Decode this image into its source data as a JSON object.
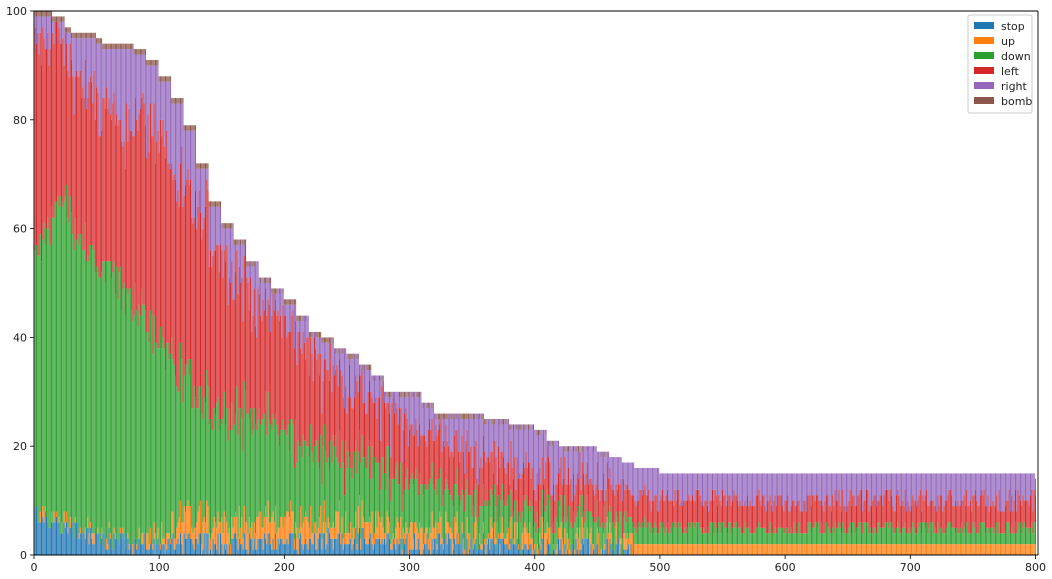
{
  "chart_data": {
    "type": "bar",
    "stacked": true,
    "x_start": 0,
    "x_end": 800,
    "xlim": [
      0,
      802
    ],
    "ylim": [
      0,
      100
    ],
    "x_ticks": [
      0,
      100,
      200,
      300,
      400,
      500,
      600,
      700,
      800
    ],
    "y_ticks": [
      0,
      20,
      40,
      60,
      80,
      100
    ],
    "grid": false,
    "legend_position": "top-right",
    "series": [
      {
        "name": "stop",
        "color": "#1f77b4"
      },
      {
        "name": "up",
        "color": "#ff7f0e"
      },
      {
        "name": "down",
        "color": "#2ca02c"
      },
      {
        "name": "left",
        "color": "#d62728"
      },
      {
        "name": "right",
        "color": "#9467bd"
      },
      {
        "name": "bomb",
        "color": "#8c564b"
      }
    ],
    "total_profile": [
      [
        0,
        100
      ],
      [
        8,
        100
      ],
      [
        15,
        99
      ],
      [
        25,
        97
      ],
      [
        30,
        96
      ],
      [
        50,
        95
      ],
      [
        55,
        94
      ],
      [
        80,
        93
      ],
      [
        90,
        91
      ],
      [
        100,
        88
      ],
      [
        110,
        84
      ],
      [
        120,
        79
      ],
      [
        130,
        72
      ],
      [
        140,
        65
      ],
      [
        150,
        61
      ],
      [
        160,
        58
      ],
      [
        170,
        54
      ],
      [
        180,
        51
      ],
      [
        190,
        49
      ],
      [
        200,
        47
      ],
      [
        210,
        44
      ],
      [
        220,
        41
      ],
      [
        230,
        40
      ],
      [
        240,
        38
      ],
      [
        250,
        37
      ],
      [
        260,
        35
      ],
      [
        270,
        33
      ],
      [
        280,
        30
      ],
      [
        300,
        30
      ],
      [
        310,
        28
      ],
      [
        320,
        26
      ],
      [
        350,
        26
      ],
      [
        360,
        25
      ],
      [
        380,
        24
      ],
      [
        400,
        23
      ],
      [
        410,
        21
      ],
      [
        420,
        20
      ],
      [
        450,
        19
      ],
      [
        460,
        18
      ],
      [
        470,
        17
      ],
      [
        480,
        16
      ],
      [
        500,
        15
      ],
      [
        780,
        15
      ],
      [
        800,
        14
      ]
    ],
    "stop_profile": [
      [
        0,
        8
      ],
      [
        10,
        6
      ],
      [
        30,
        5
      ],
      [
        50,
        3
      ],
      [
        80,
        2
      ],
      [
        150,
        2
      ],
      [
        250,
        3
      ],
      [
        300,
        2
      ],
      [
        350,
        2
      ],
      [
        400,
        1
      ],
      [
        470,
        1
      ],
      [
        480,
        0
      ],
      [
        800,
        0
      ]
    ],
    "up_profile": [
      [
        0,
        0
      ],
      [
        80,
        0
      ],
      [
        120,
        4
      ],
      [
        250,
        4
      ],
      [
        300,
        3
      ],
      [
        350,
        2
      ],
      [
        400,
        2
      ],
      [
        500,
        2
      ],
      [
        800,
        2
      ]
    ],
    "down_profile": [
      [
        0,
        44
      ],
      [
        8,
        50
      ],
      [
        20,
        60
      ],
      [
        30,
        57
      ],
      [
        40,
        53
      ],
      [
        50,
        50
      ],
      [
        60,
        48
      ],
      [
        70,
        46
      ],
      [
        80,
        44
      ],
      [
        90,
        40
      ],
      [
        100,
        37
      ],
      [
        110,
        30
      ],
      [
        120,
        25
      ],
      [
        140,
        20
      ],
      [
        180,
        20
      ],
      [
        200,
        16
      ],
      [
        250,
        11
      ],
      [
        300,
        9
      ],
      [
        360,
        6
      ],
      [
        400,
        5
      ],
      [
        450,
        4
      ],
      [
        500,
        3
      ],
      [
        800,
        3
      ]
    ],
    "left_profile": [
      [
        0,
        40
      ],
      [
        10,
        35
      ],
      [
        20,
        30
      ],
      [
        30,
        28
      ],
      [
        50,
        30
      ],
      [
        70,
        28
      ],
      [
        80,
        35
      ],
      [
        100,
        37
      ],
      [
        120,
        35
      ],
      [
        140,
        33
      ],
      [
        160,
        27
      ],
      [
        180,
        20
      ],
      [
        200,
        20
      ],
      [
        250,
        14
      ],
      [
        300,
        10
      ],
      [
        350,
        8
      ],
      [
        400,
        7
      ],
      [
        450,
        6
      ],
      [
        500,
        5
      ],
      [
        800,
        5
      ]
    ],
    "bomb_profile": [
      [
        0,
        0
      ],
      [
        10,
        1
      ],
      [
        130,
        1
      ],
      [
        150,
        0.8
      ],
      [
        300,
        0.5
      ],
      [
        400,
        0.5
      ],
      [
        480,
        0
      ],
      [
        800,
        0
      ]
    ]
  }
}
